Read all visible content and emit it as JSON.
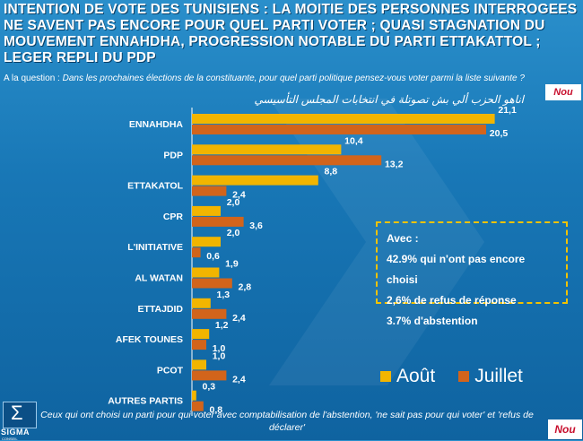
{
  "title": "INTENTION DE VOTE DES TUNISIENS : LA MOITIE DES PERSONNES INTERROGEES NE SAVENT PAS ENCORE POUR QUEL PARTI VOTER ; QUASI STAGNATION DU MOUVEMENT ENNAHDHA, PROGRESSION NOTABLE DU PARTI ETTAKATTOL ; LEGER REPLI DU PDP",
  "question": {
    "label": "A la question : ",
    "text": "Dans les prochaines élections de la constituante, pour quel parti politique pensez-vous voter parmi la liste suivante ?",
    "arabic": "اناهو الحزب ألي بش تصوتلة في انتخابات المجلس التأسيسي"
  },
  "infobox": {
    "heading": "Avec :",
    "lines": [
      "42.9% qui n'ont pas encore choisi",
      "2,6% de refus de réponse",
      "3.7% d'abstention"
    ]
  },
  "footer": "Ceux qui ont choisi un parti pour qui voter avec comptabilisation de l'abstention, 'ne sait pas pour qui voter' et 'refus de déclarer'",
  "logos": {
    "left": "SIGMA",
    "left_sub": "CONSEIL",
    "right": "Nou"
  },
  "colors": {
    "aout": "#f2b500",
    "juillet": "#d2641b",
    "background": "#1877b6",
    "accent_border": "#f2c200"
  },
  "chart_data": {
    "type": "bar",
    "orientation": "horizontal",
    "categories": [
      "ENNAHDHA",
      "PDP",
      "ETTAKATOL",
      "CPR",
      "L'INITIATIVE",
      "AL WATAN",
      "ETTAJDID",
      "AFEK TOUNES",
      "PCOT",
      "AUTRES PARTIS"
    ],
    "series": [
      {
        "name": "Août",
        "values": [
          21.1,
          10.4,
          8.8,
          2.0,
          2.0,
          1.9,
          1.3,
          1.2,
          1.0,
          0.3
        ],
        "labels": [
          "21,1",
          "10,4",
          "8,8",
          "2,0",
          "2,0",
          "1,9",
          "1,3",
          "1,2",
          "1,0",
          "0,3"
        ]
      },
      {
        "name": "Juillet",
        "values": [
          20.5,
          13.2,
          2.4,
          3.6,
          0.6,
          2.8,
          2.4,
          1.0,
          2.4,
          0.8
        ],
        "labels": [
          "20,5",
          "13,2",
          "2,4",
          "3,6",
          "0,6",
          "2,8",
          "2,4",
          "1,0",
          "2,4",
          "0,8"
        ]
      }
    ],
    "xlim": [
      0,
      22
    ],
    "legend_position": "bottom-right",
    "grid": false
  }
}
